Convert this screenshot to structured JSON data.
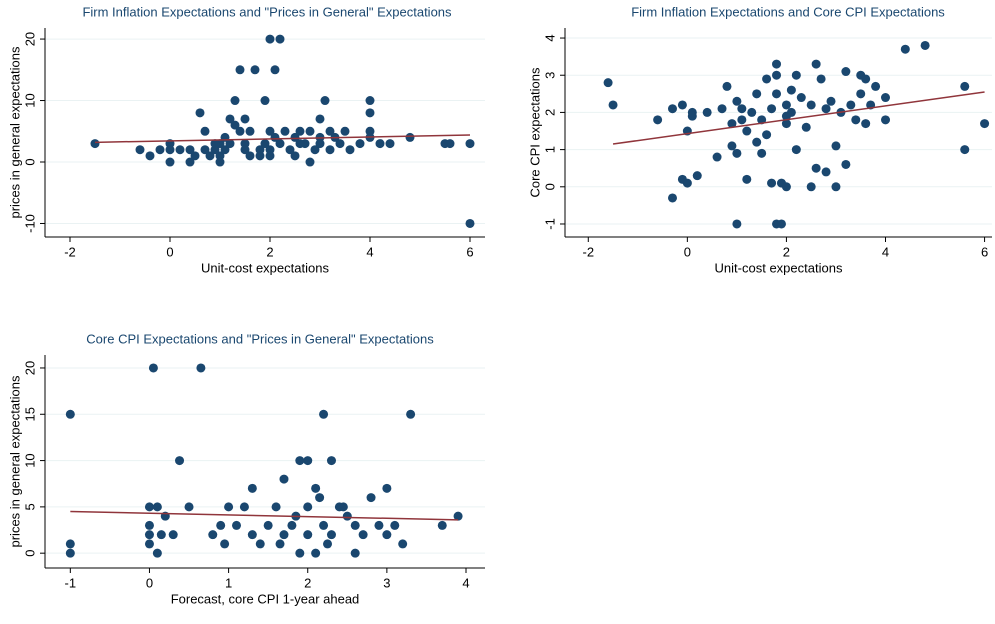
{
  "chart_data": [
    {
      "type": "scatter",
      "title": "Firm Inflation Expectations and \"Prices in General\" Expectations",
      "x_label": "Unit-cost expectations",
      "y_label": "prices in general expectations",
      "xlim": [
        -2.5,
        6.3
      ],
      "ylim": [
        -12.2,
        21.8
      ],
      "xticks": [
        -2,
        0,
        2,
        4,
        6
      ],
      "yticks": [
        -10,
        0,
        10,
        20
      ],
      "grid": true,
      "series": [
        {
          "color": "#1a476f",
          "x": [
            -1.5,
            -0.6,
            -0.4,
            -0.2,
            0,
            0,
            0,
            0.2,
            0.4,
            0.4,
            0.5,
            0.6,
            0.7,
            0.7,
            0.8,
            0.9,
            1,
            1,
            1,
            1.1,
            1.2,
            1.2,
            1.3,
            1.3,
            1.4,
            1.4,
            1.5,
            1.5,
            1.6,
            1.6,
            1.7,
            1.8,
            1.8,
            1.9,
            1.9,
            2,
            2,
            2,
            2,
            2.1,
            2.1,
            2.2,
            2.2,
            2.3,
            2.4,
            2.5,
            2.5,
            2.6,
            2.7,
            2.8,
            2.8,
            2.9,
            3,
            3,
            3,
            3.1,
            3.2,
            3.2,
            3.4,
            3.5,
            3.6,
            3.8,
            4,
            4,
            4,
            4,
            4.2,
            4.4,
            4.8,
            5.5,
            5.6,
            6,
            6,
            1.5,
            2.6,
            3.3,
            1.1,
            0.9
          ],
          "values": [
            3,
            2,
            1,
            2,
            3,
            2,
            0,
            2,
            2,
            0,
            1,
            8,
            5,
            2,
            1,
            2,
            3,
            1,
            0,
            2,
            7,
            3,
            6,
            10,
            15,
            5,
            3,
            2,
            5,
            1,
            15,
            2,
            1,
            10,
            3,
            5,
            20,
            2,
            1,
            15,
            4,
            20,
            3,
            5,
            2,
            1,
            4,
            5,
            3,
            0,
            5,
            2,
            7,
            4,
            3,
            10,
            5,
            2,
            3,
            5,
            2,
            3,
            8,
            10,
            5,
            4,
            3,
            3,
            4,
            3,
            3,
            3,
            -10,
            7,
            3,
            4,
            4,
            3
          ]
        }
      ],
      "fit": {
        "color": "#90353b",
        "x": [
          -1.5,
          6
        ],
        "values": [
          3.2,
          4.4
        ]
      }
    },
    {
      "type": "scatter",
      "title": "Firm Inflation Expectations and Core CPI Expectations",
      "x_label": "Unit-cost expectations",
      "y_label": "Core CPI expectations",
      "xlim": [
        -2.47,
        6.15
      ],
      "ylim": [
        -1.35,
        4.27
      ],
      "xticks": [
        -2,
        0,
        2,
        4,
        6
      ],
      "yticks": [
        -1,
        0,
        1,
        2,
        3,
        4
      ],
      "grid": true,
      "series": [
        {
          "color": "#1a476f",
          "x": [
            -1.6,
            -1.5,
            -0.6,
            -0.3,
            -0.3,
            -0.1,
            -0.1,
            0,
            0,
            0.1,
            0.1,
            0.2,
            0.4,
            0.6,
            0.7,
            0.8,
            0.9,
            0.9,
            1,
            1,
            1,
            1.1,
            1.1,
            1.2,
            1.2,
            1.3,
            1.4,
            1.4,
            1.5,
            1.5,
            1.6,
            1.6,
            1.7,
            1.7,
            1.8,
            1.8,
            1.8,
            1.8,
            1.9,
            1.9,
            2,
            2,
            2,
            2,
            2.1,
            2.1,
            2.2,
            2.2,
            2.3,
            2.4,
            2.5,
            2.5,
            2.6,
            2.6,
            2.7,
            2.8,
            2.8,
            2.9,
            3,
            3,
            3.1,
            3.2,
            3.2,
            3.3,
            3.4,
            3.5,
            3.5,
            3.6,
            3.7,
            3.8,
            4,
            4,
            4.4,
            4.8,
            5.6,
            5.6,
            6,
            3.6
          ],
          "values": [
            2.8,
            2.2,
            1.8,
            2.1,
            -0.3,
            0.2,
            2.2,
            1.5,
            0.1,
            2,
            1.9,
            0.3,
            2,
            0.8,
            2.1,
            2.7,
            1.7,
            1.1,
            0.9,
            2.3,
            -1,
            1.8,
            2.1,
            0.2,
            1.5,
            2,
            2.5,
            1.2,
            1.8,
            0.9,
            2.9,
            1.4,
            0.1,
            2.1,
            3.3,
            3,
            2.5,
            -1,
            -1,
            0.1,
            2.2,
            1.9,
            1.7,
            0,
            2.6,
            2,
            3,
            1,
            2.4,
            1.6,
            2.2,
            0,
            3.3,
            0.5,
            2.9,
            2.1,
            0.4,
            2.3,
            1.1,
            0,
            2,
            3.1,
            0.6,
            2.2,
            1.8,
            3,
            2.5,
            2.9,
            2.2,
            2.7,
            2.4,
            1.8,
            3.7,
            3.8,
            2.7,
            1,
            1.7,
            1.7
          ]
        }
      ],
      "fit": {
        "color": "#90353b",
        "x": [
          -1.5,
          6
        ],
        "values": [
          1.15,
          2.55
        ]
      }
    },
    {
      "type": "scatter",
      "title": "Core CPI Expectations and \"Prices in General\" Expectations",
      "x_label": "Forecast, core CPI 1-year ahead",
      "y_label": "prices in general expectations",
      "xlim": [
        -1.32,
        4.24
      ],
      "ylim": [
        -1.6,
        21.4
      ],
      "xticks": [
        -1,
        0,
        1,
        2,
        3,
        4
      ],
      "yticks": [
        0,
        5,
        10,
        15,
        20
      ],
      "grid": true,
      "series": [
        {
          "color": "#1a476f",
          "x": [
            -1,
            -1,
            -1,
            0,
            0,
            0,
            0,
            0.05,
            0.1,
            0.1,
            0.15,
            0.2,
            0.3,
            0.38,
            0.5,
            0.65,
            0.8,
            0.9,
            0.95,
            1,
            1.1,
            1.2,
            1.3,
            1.3,
            1.4,
            1.5,
            1.6,
            1.7,
            1.7,
            1.8,
            1.9,
            1.9,
            2,
            2,
            2,
            2.1,
            2.1,
            2.2,
            2.2,
            2.3,
            2.3,
            2.4,
            2.5,
            2.6,
            2.7,
            2.8,
            2.9,
            3,
            3,
            3.1,
            3.2,
            3.3,
            3.7,
            3.9,
            2.45,
            1.85,
            2.15,
            1.65,
            2.6,
            2.25
          ],
          "values": [
            15,
            1,
            0,
            5,
            3,
            2,
            1,
            20,
            0,
            5,
            2,
            4,
            2,
            10,
            5,
            20,
            2,
            3,
            1,
            5,
            3,
            5,
            2,
            7,
            1,
            3,
            5,
            8,
            2,
            3,
            10,
            0,
            10,
            5,
            2,
            0,
            7,
            15,
            3,
            10,
            2,
            5,
            4,
            3,
            2,
            6,
            3,
            7,
            2,
            3,
            1,
            15,
            3,
            4,
            5,
            4,
            6,
            1,
            0,
            1
          ]
        }
      ],
      "fit": {
        "color": "#90353b",
        "x": [
          -1,
          3.9
        ],
        "values": [
          4.5,
          3.6
        ]
      }
    }
  ]
}
